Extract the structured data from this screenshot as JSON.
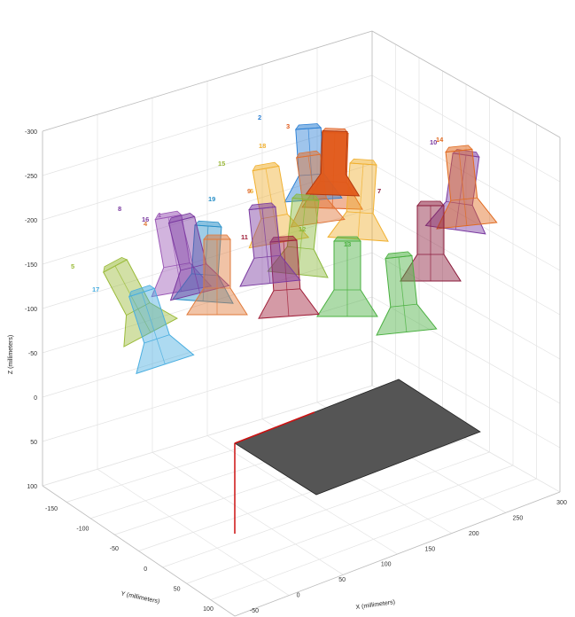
{
  "chart_data": {
    "type": "3d-scatter-wireframe",
    "xlabel": "X (millimeters)",
    "ylabel": "Y (millimeters)",
    "zlabel": "Z (millimeters)",
    "x_ticks": [
      "-50",
      "0",
      "50",
      "100",
      "150",
      "200",
      "250",
      "300"
    ],
    "y_ticks": [
      "-150",
      "-100",
      "-50",
      "0",
      "50",
      "100"
    ],
    "z_ticks": [
      "-300",
      "-250",
      "-200",
      "-150",
      "-100",
      "-50",
      "0",
      "50",
      "100"
    ],
    "grid": true,
    "plate": {
      "color": "#555555"
    },
    "objects": [
      {
        "label": "1",
        "color": "#9b59b6"
      },
      {
        "label": "2",
        "color": "#2a7fd4"
      },
      {
        "label": "3",
        "color": "#e05a1a"
      },
      {
        "label": "4",
        "color": "#e07a3a"
      },
      {
        "label": "5",
        "color": "#9bbb3a"
      },
      {
        "label": "6",
        "color": "#f0b030"
      },
      {
        "label": "7",
        "color": "#8a1a3a"
      },
      {
        "label": "8",
        "color": "#7a3aa0"
      },
      {
        "label": "9",
        "color": "#e07030"
      },
      {
        "label": "10",
        "color": "#7a3aa0"
      },
      {
        "label": "11",
        "color": "#a0203a"
      },
      {
        "label": "12",
        "color": "#8ab83a"
      },
      {
        "label": "13",
        "color": "#4ab040"
      },
      {
        "label": "14",
        "color": "#e06a20"
      },
      {
        "label": "15",
        "color": "#9ab83a"
      },
      {
        "label": "16",
        "color": "#7a3aa0"
      },
      {
        "label": "17",
        "color": "#4aaee0"
      },
      {
        "label": "18",
        "color": "#f0b030"
      },
      {
        "label": "19",
        "color": "#2a90c8"
      }
    ]
  }
}
